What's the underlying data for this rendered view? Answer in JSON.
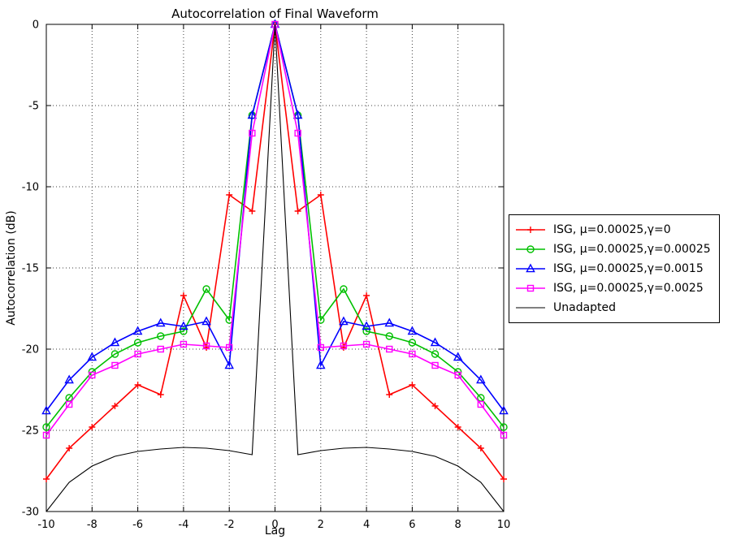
{
  "chart_data": {
    "type": "line",
    "title": "Autocorrelation of Final Waveform",
    "xlabel": "Lag",
    "ylabel": "Autocorrelation (dB)",
    "xlim": [
      -10,
      10
    ],
    "ylim": [
      -30,
      0
    ],
    "xticks": [
      -10,
      -8,
      -6,
      -4,
      -2,
      0,
      2,
      4,
      6,
      8,
      10
    ],
    "yticks": [
      -30,
      -25,
      -20,
      -15,
      -10,
      -5,
      0
    ],
    "grid": true,
    "legend_position": "right-outside",
    "x": [
      -10,
      -9,
      -8,
      -7,
      -6,
      -5,
      -4,
      -3,
      -2,
      -1,
      0,
      1,
      2,
      3,
      4,
      5,
      6,
      7,
      8,
      9,
      10
    ],
    "series": [
      {
        "name": "ISG, μ=0.00025,γ=0",
        "color": "#ff0000",
        "marker": "plus",
        "values": [
          -28.0,
          -26.1,
          -24.8,
          -23.5,
          -22.2,
          -22.8,
          -16.7,
          -19.9,
          -10.5,
          -11.5,
          0,
          -11.5,
          -10.5,
          -19.9,
          -16.7,
          -22.8,
          -22.2,
          -23.5,
          -24.8,
          -26.1,
          -28.0
        ]
      },
      {
        "name": "ISG, μ=0.00025,γ=0.00025",
        "color": "#00c000",
        "marker": "circle",
        "values": [
          -24.8,
          -23.0,
          -21.4,
          -20.3,
          -19.6,
          -19.2,
          -18.9,
          -16.3,
          -18.2,
          -5.6,
          0,
          -5.6,
          -18.2,
          -16.3,
          -18.9,
          -19.2,
          -19.6,
          -20.3,
          -21.4,
          -23.0,
          -24.8
        ]
      },
      {
        "name": "ISG, μ=0.00025,γ=0.0015",
        "color": "#0000ff",
        "marker": "triangle",
        "values": [
          -23.8,
          -21.9,
          -20.5,
          -19.6,
          -18.9,
          -18.4,
          -18.6,
          -18.3,
          -21.0,
          -5.6,
          0,
          -5.6,
          -21.0,
          -18.3,
          -18.6,
          -18.4,
          -18.9,
          -19.6,
          -20.5,
          -21.9,
          -23.8
        ]
      },
      {
        "name": "ISG, μ=0.00025,γ=0.0025",
        "color": "#ff00ff",
        "marker": "square",
        "values": [
          -25.3,
          -23.4,
          -21.6,
          -21.0,
          -20.3,
          -20.0,
          -19.7,
          -19.8,
          -19.9,
          -6.7,
          0,
          -6.7,
          -19.9,
          -19.8,
          -19.7,
          -20.0,
          -20.3,
          -21.0,
          -21.6,
          -23.4,
          -25.3
        ]
      },
      {
        "name": "Unadapted",
        "color": "#000000",
        "marker": "none",
        "values": [
          -30.0,
          -28.2,
          -27.2,
          -26.6,
          -26.3,
          -26.15,
          -26.05,
          -26.1,
          -26.25,
          -26.5,
          0,
          -26.5,
          -26.25,
          -26.1,
          -26.05,
          -26.15,
          -26.3,
          -26.6,
          -27.2,
          -28.2,
          -30.0
        ]
      }
    ]
  }
}
